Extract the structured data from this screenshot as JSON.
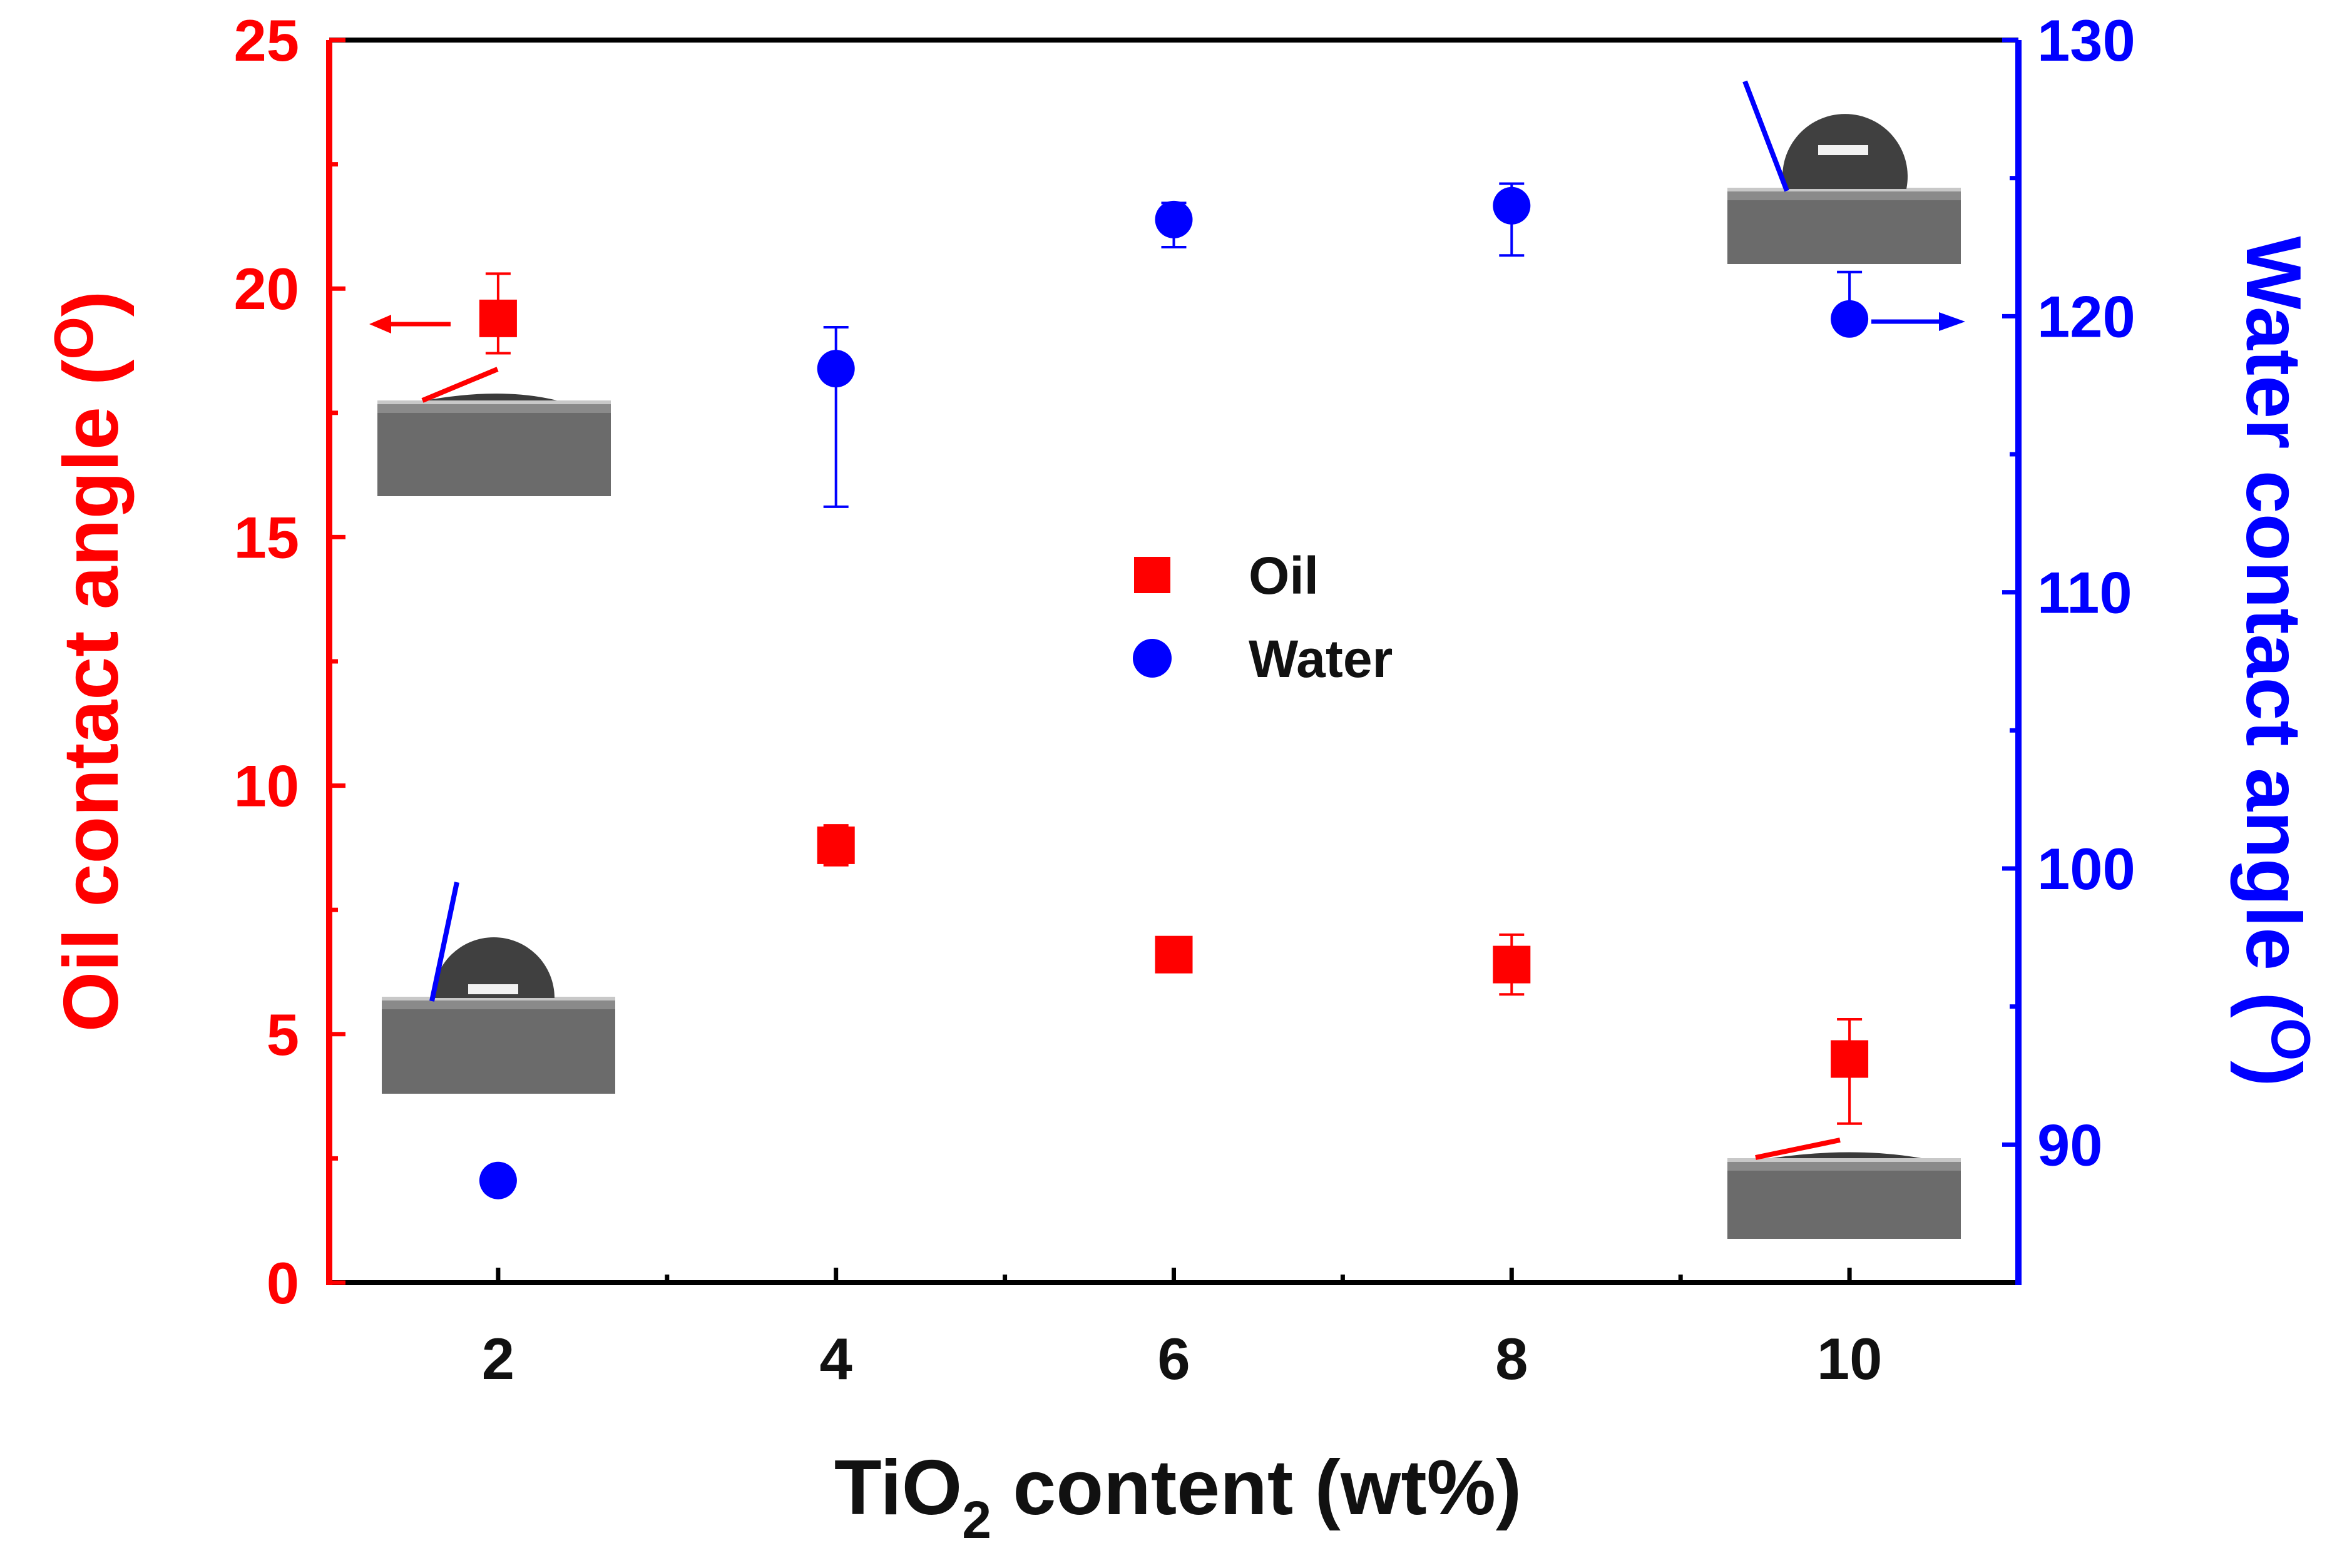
{
  "chart_data": {
    "type": "scatter",
    "title": "",
    "xlabel": {
      "main": "TiO",
      "sub": "2",
      "rest": " content (wt%)"
    },
    "ylabel_left": "Oil contact angle (",
    "ylabel_left_sup": "O",
    "ylabel_left_close": ")",
    "ylabel_right": "Water contact angle (",
    "ylabel_right_sup": "O",
    "ylabel_right_close": ")",
    "xlim": [
      1,
      11
    ],
    "ylim_left": [
      0,
      25
    ],
    "ylim_right": [
      85,
      130
    ],
    "x_ticks": [
      2,
      4,
      6,
      8,
      10
    ],
    "x_tick_labels": [
      "2",
      "4",
      "6",
      "8",
      "10"
    ],
    "y_left_ticks": [
      0,
      5,
      10,
      15,
      20,
      25
    ],
    "y_left_tick_labels": [
      "0",
      "5",
      "10",
      "15",
      "20",
      "25"
    ],
    "y_right_ticks": [
      90,
      100,
      110,
      120,
      130
    ],
    "y_right_tick_labels": [
      "90",
      "100",
      "110",
      "120",
      "130"
    ],
    "legend": {
      "position": "center",
      "entries": [
        "Oil",
        "Water"
      ]
    },
    "series": [
      {
        "name": "Oil",
        "axis": "left",
        "marker": "square",
        "color": "#ff0000",
        "x": [
          2,
          4,
          6,
          8,
          10
        ],
        "y": [
          19.4,
          8.8,
          6.6,
          6.4,
          4.5
        ],
        "err_low": [
          0.7,
          0.4,
          0.2,
          0.6,
          1.3
        ],
        "err_high": [
          0.9,
          0.4,
          0.2,
          0.6,
          0.8
        ]
      },
      {
        "name": "Water",
        "axis": "right",
        "marker": "circle",
        "color": "#0000ff",
        "x": [
          2,
          4,
          6,
          8,
          10
        ],
        "y": [
          88.7,
          118.1,
          123.5,
          124.0,
          119.9
        ],
        "err_low": [
          0,
          5.0,
          1.0,
          1.8,
          0
        ],
        "err_high": [
          0,
          1.5,
          0.6,
          0.8,
          1.7
        ]
      }
    ],
    "colors": {
      "left_axis": "#ff0000",
      "right_axis": "#0000ff",
      "frame": "#000000"
    }
  }
}
